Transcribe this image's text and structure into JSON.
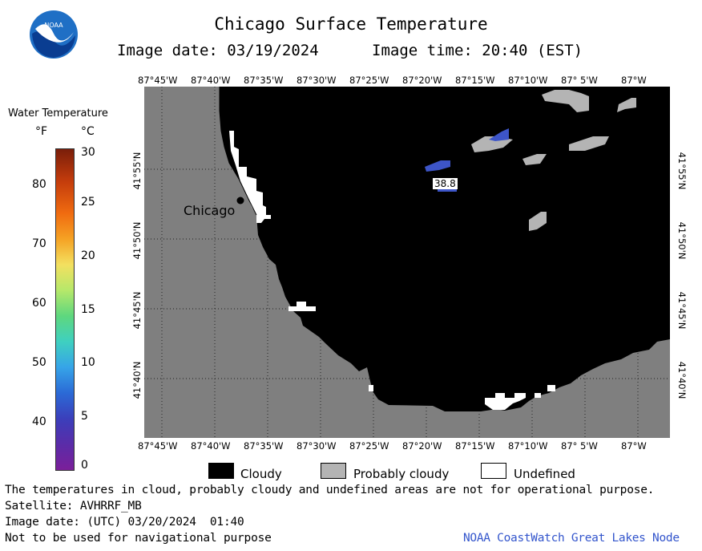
{
  "header": {
    "title": "Chicago Surface Temperature",
    "image_date": "Image date: 03/19/2024",
    "image_time": "Image time: 20:40 (EST)"
  },
  "logo": {
    "text": "NOAA",
    "icon": "noaa-logo-icon"
  },
  "colorbar": {
    "title": "Water Temperature",
    "unit_f": "°F",
    "unit_c": "°C",
    "f_ticks": [
      "80",
      "70",
      "60",
      "50",
      "40"
    ],
    "c_ticks": [
      "30",
      "25",
      "20",
      "15",
      "10",
      "5",
      "0"
    ]
  },
  "map": {
    "lon_labels": [
      "87°45'W",
      "87°40'W",
      "87°35'W",
      "87°30'W",
      "87°25'W",
      "87°20'W",
      "87°15'W",
      "87°10'W",
      "87° 5'W",
      "87°W"
    ],
    "lat_labels": [
      "41°55'N",
      "41°50'N",
      "41°45'N",
      "41°40'N"
    ],
    "city_label": "Chicago",
    "temperature_reading": "38.8",
    "colors": {
      "land": "#7f7f7f",
      "cloudy": "#000000",
      "probably_cloudy": "#b4b4b4",
      "undefined": "#ffffff",
      "water_38f": "#3d55c8"
    }
  },
  "legend": {
    "cloudy": "Cloudy",
    "probably_cloudy": "Probably cloudy",
    "undefined": "Undefined"
  },
  "footer": {
    "disclaimer": "The temperatures in cloud, probably cloudy and undefined areas are not for operational purpose.",
    "satellite": "Satellite: AVHRRF_MB",
    "utc_date": "Image date: (UTC) 03/20/2024  01:40",
    "nav_warning": "Not to be used for navigational purpose",
    "credit": "NOAA CoastWatch Great Lakes Node"
  }
}
